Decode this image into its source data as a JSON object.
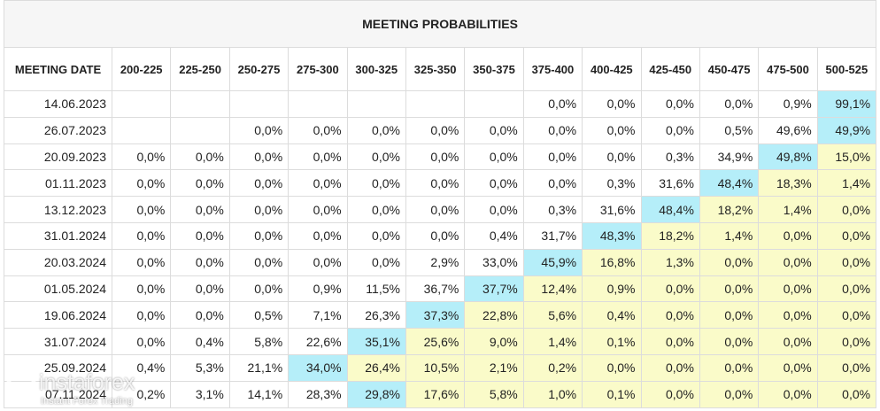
{
  "table": {
    "title": "MEETING PROBABILITIES",
    "columns": [
      "MEETING DATE",
      "200-225",
      "225-250",
      "250-275",
      "275-300",
      "300-325",
      "325-350",
      "350-375",
      "375-400",
      "400-425",
      "425-450",
      "450-475",
      "475-500",
      "500-525"
    ],
    "rows": [
      [
        "14.06.2023",
        null,
        null,
        null,
        null,
        null,
        null,
        null,
        "0,0%",
        "0,0%",
        "0,0%",
        "0,0%",
        "0,9%",
        "99,1%"
      ],
      [
        "26.07.2023",
        null,
        null,
        "0,0%",
        "0,0%",
        "0,0%",
        "0,0%",
        "0,0%",
        "0,0%",
        "0,0%",
        "0,0%",
        "0,5%",
        "49,6%",
        "49,9%"
      ],
      [
        "20.09.2023",
        "0,0%",
        "0,0%",
        "0,0%",
        "0,0%",
        "0,0%",
        "0,0%",
        "0,0%",
        "0,0%",
        "0,0%",
        "0,3%",
        "34,9%",
        "49,8%",
        "15,0%"
      ],
      [
        "01.11.2023",
        "0,0%",
        "0,0%",
        "0,0%",
        "0,0%",
        "0,0%",
        "0,0%",
        "0,0%",
        "0,0%",
        "0,3%",
        "31,6%",
        "48,4%",
        "18,3%",
        "1,4%"
      ],
      [
        "13.12.2023",
        "0,0%",
        "0,0%",
        "0,0%",
        "0,0%",
        "0,0%",
        "0,0%",
        "0,0%",
        "0,3%",
        "31,6%",
        "48,4%",
        "18,2%",
        "1,4%",
        "0,0%"
      ],
      [
        "31.01.2024",
        "0,0%",
        "0,0%",
        "0,0%",
        "0,0%",
        "0,0%",
        "0,0%",
        "0,4%",
        "31,7%",
        "48,3%",
        "18,2%",
        "1,4%",
        "0,0%",
        "0,0%"
      ],
      [
        "20.03.2024",
        "0,0%",
        "0,0%",
        "0,0%",
        "0,0%",
        "0,0%",
        "2,9%",
        "33,0%",
        "45,9%",
        "16,8%",
        "1,3%",
        "0,0%",
        "0,0%",
        "0,0%"
      ],
      [
        "01.05.2024",
        "0,0%",
        "0,0%",
        "0,0%",
        "0,9%",
        "11,5%",
        "36,7%",
        "37,7%",
        "12,4%",
        "0,9%",
        "0,0%",
        "0,0%",
        "0,0%",
        "0,0%"
      ],
      [
        "19.06.2024",
        "0,0%",
        "0,0%",
        "0,5%",
        "7,1%",
        "26,3%",
        "37,3%",
        "22,8%",
        "5,6%",
        "0,4%",
        "0,0%",
        "0,0%",
        "0,0%",
        "0,0%"
      ],
      [
        "31.07.2024",
        "0,0%",
        "0,4%",
        "5,8%",
        "22,6%",
        "35,1%",
        "25,6%",
        "9,0%",
        "1,4%",
        "0,1%",
        "0,0%",
        "0,0%",
        "0,0%",
        "0,0%"
      ],
      [
        "25.09.2024",
        "0,4%",
        "5,3%",
        "21,1%",
        "34,0%",
        "26,4%",
        "10,5%",
        "2,1%",
        "0,2%",
        "0,0%",
        "0,0%",
        "0,0%",
        "0,0%",
        "0,0%"
      ],
      [
        "07.11.2024",
        "0,2%",
        "3,1%",
        "14,1%",
        "28,3%",
        "29,8%",
        "17,6%",
        "5,8%",
        "1,0%",
        "0,1%",
        "0,0%",
        "0,0%",
        "0,0%",
        "0,0%"
      ]
    ]
  },
  "watermark": {
    "brand": "instaforex",
    "tagline": "Instant Forex Trading"
  }
}
